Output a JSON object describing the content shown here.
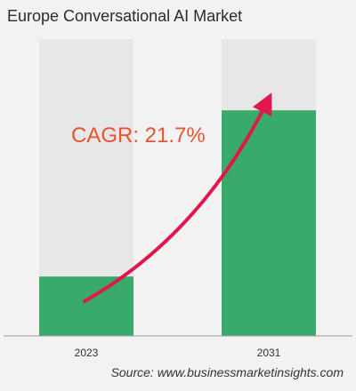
{
  "chart_data": {
    "type": "bar",
    "title": "Europe Conversational AI Market",
    "categories": [
      "2023",
      "2031"
    ],
    "values": [
      1.0,
      3.8
    ],
    "ylim": [
      0,
      5.0
    ],
    "annotation": "CAGR: 21.7%",
    "source": "Source: www.businessmarketinsights.com",
    "grid": false,
    "legend": "none"
  },
  "colors": {
    "bar": "#3aaa6a",
    "bar_track": "#e7e7e7",
    "arrow": "#e0174a",
    "annotation": "#e8532f",
    "baseline": "#9a9a9a",
    "background": "#f2f2f2"
  }
}
